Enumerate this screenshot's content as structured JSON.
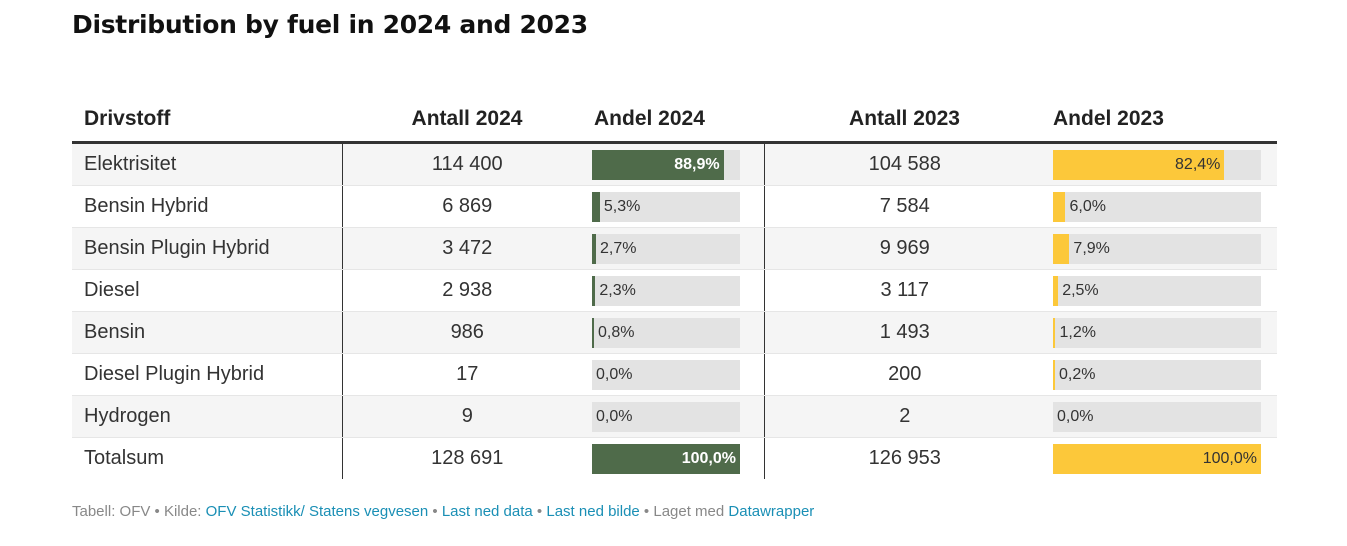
{
  "title": "Distribution by fuel in 2024 and 2023",
  "chart_data": {
    "type": "table",
    "title": "Distribution by fuel in 2024 and 2023",
    "columns": [
      "Drivstoff",
      "Antall 2024",
      "Andel 2024",
      "Antall 2023",
      "Andel 2023"
    ],
    "rows": [
      {
        "fuel": "Elektrisitet",
        "count_2024": "114 400",
        "share_2024": 88.9,
        "share_2024_label": "88,9%",
        "count_2023": "104 588",
        "share_2023": 82.4,
        "share_2023_label": "82,4%"
      },
      {
        "fuel": "Bensin Hybrid",
        "count_2024": "6 869",
        "share_2024": 5.3,
        "share_2024_label": "5,3%",
        "count_2023": "7 584",
        "share_2023": 6.0,
        "share_2023_label": "6,0%"
      },
      {
        "fuel": "Bensin Plugin Hybrid",
        "count_2024": "3 472",
        "share_2024": 2.7,
        "share_2024_label": "2,7%",
        "count_2023": "9 969",
        "share_2023": 7.9,
        "share_2023_label": "7,9%"
      },
      {
        "fuel": "Diesel",
        "count_2024": "2 938",
        "share_2024": 2.3,
        "share_2024_label": "2,3%",
        "count_2023": "3 117",
        "share_2023": 2.5,
        "share_2023_label": "2,5%"
      },
      {
        "fuel": "Bensin",
        "count_2024": "986",
        "share_2024": 0.8,
        "share_2024_label": "0,8%",
        "count_2023": "1 493",
        "share_2023": 1.2,
        "share_2023_label": "1,2%"
      },
      {
        "fuel": "Diesel Plugin Hybrid",
        "count_2024": "17",
        "share_2024": 0.0,
        "share_2024_label": "0,0%",
        "count_2023": "200",
        "share_2023": 0.2,
        "share_2023_label": "0,2%"
      },
      {
        "fuel": "Hydrogen",
        "count_2024": "9",
        "share_2024": 0.0,
        "share_2024_label": "0,0%",
        "count_2023": "2",
        "share_2023": 0.0,
        "share_2023_label": "0,0%"
      },
      {
        "fuel": "Totalsum",
        "count_2024": "128 691",
        "share_2024": 100.0,
        "share_2024_label": "100,0%",
        "count_2023": "126 953",
        "share_2023": 100.0,
        "share_2023_label": "100,0%"
      }
    ],
    "colors": {
      "share_2024": "#4f6b4a",
      "share_2023": "#fcc83a",
      "bar_background": "#e3e3e3"
    }
  },
  "footer": {
    "prefix": "Tabell: OFV • Kilde: ",
    "source_link": "OFV Statistikk/ Statens vegvesen",
    "sep1": " • ",
    "download_data": "Last ned data",
    "sep2": " • ",
    "download_image": "Last ned bilde",
    "sep3": " • Laget med ",
    "made_with": "Datawrapper"
  }
}
